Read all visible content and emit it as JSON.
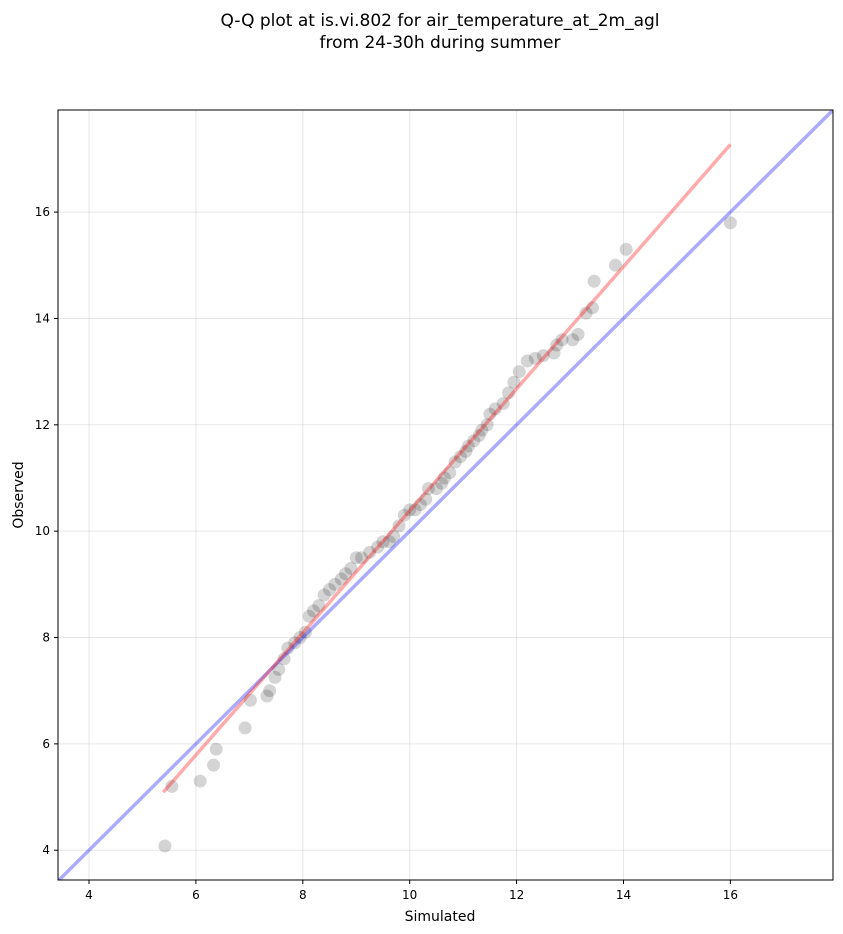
{
  "chart_data": {
    "type": "scatter",
    "title": [
      "Q-Q plot at is.vi.802 for air_temperature_at_2m_agl",
      "from 24-30h during summer"
    ],
    "x_label": "Simulated",
    "y_label": "Observed",
    "xlim": [
      3.42,
      17.92
    ],
    "ylim": [
      3.44,
      17.92
    ],
    "xticks": [
      4,
      6,
      8,
      10,
      12,
      14,
      16
    ],
    "yticks": [
      4,
      6,
      8,
      10,
      12,
      14,
      16
    ],
    "grid": true,
    "color": "#000000",
    "x": [
      5.42,
      5.55,
      6.08,
      6.33,
      6.38,
      6.92,
      7.02,
      7.33,
      7.38,
      7.48,
      7.55,
      7.65,
      7.72,
      7.85,
      7.95,
      8.05,
      8.12,
      8.2,
      8.3,
      8.4,
      8.5,
      8.6,
      8.72,
      8.8,
      8.9,
      9.0,
      9.1,
      9.25,
      9.4,
      9.5,
      9.62,
      9.7,
      9.8,
      9.9,
      10.0,
      10.1,
      10.2,
      10.3,
      10.35,
      10.5,
      10.6,
      10.65,
      10.75,
      10.85,
      10.95,
      11.05,
      11.1,
      11.2,
      11.3,
      11.35,
      11.45,
      11.5,
      11.6,
      11.75,
      11.85,
      11.95,
      12.05,
      12.2,
      12.35,
      12.5,
      12.7,
      12.75,
      12.85,
      13.05,
      13.15,
      13.3,
      13.42,
      13.45,
      13.85,
      14.05,
      16.0
    ],
    "values": [
      4.08,
      5.2,
      5.3,
      5.6,
      5.9,
      6.3,
      6.82,
      6.9,
      7.0,
      7.25,
      7.4,
      7.6,
      7.8,
      7.9,
      8.0,
      8.1,
      8.4,
      8.5,
      8.6,
      8.8,
      8.9,
      9.0,
      9.1,
      9.2,
      9.3,
      9.5,
      9.5,
      9.6,
      9.7,
      9.8,
      9.8,
      9.9,
      10.1,
      10.3,
      10.4,
      10.4,
      10.5,
      10.6,
      10.8,
      10.8,
      10.9,
      11.0,
      11.1,
      11.3,
      11.4,
      11.5,
      11.6,
      11.7,
      11.8,
      11.9,
      12.0,
      12.2,
      12.3,
      12.4,
      12.6,
      12.8,
      13.0,
      13.2,
      13.25,
      13.3,
      13.35,
      13.5,
      13.6,
      13.6,
      13.7,
      14.1,
      14.2,
      14.7,
      15.0,
      15.3,
      15.8
    ],
    "lines": [
      {
        "color": "#0000ff",
        "x": [
          3.42,
          17.92
        ],
        "y": [
          3.42,
          17.92
        ]
      },
      {
        "color": "#ff0000",
        "x": [
          5.39,
          16.0
        ],
        "y": [
          5.09,
          17.27
        ]
      }
    ]
  }
}
